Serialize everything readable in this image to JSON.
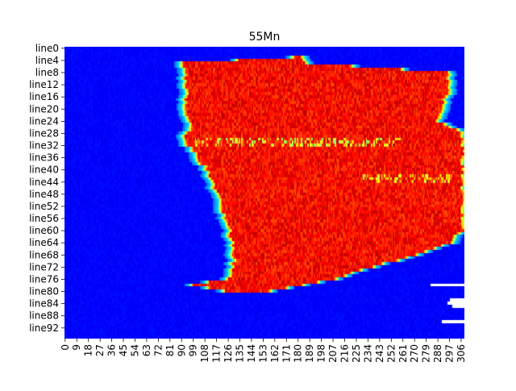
{
  "chart_data": {
    "type": "heatmap",
    "title": "55Mn",
    "xlabel": "",
    "ylabel": "",
    "n_rows": 96,
    "n_cols": 309,
    "y_tick_labels": [
      "line0",
      "line4",
      "line8",
      "line12",
      "line16",
      "line20",
      "line24",
      "line28",
      "line32",
      "line36",
      "line40",
      "line44",
      "line48",
      "line52",
      "line56",
      "line60",
      "line64",
      "line68",
      "line72",
      "line76",
      "line80",
      "line84",
      "line88",
      "line92"
    ],
    "y_tick_rows": [
      0,
      4,
      8,
      12,
      16,
      20,
      24,
      28,
      32,
      36,
      40,
      44,
      48,
      52,
      56,
      60,
      64,
      68,
      72,
      76,
      80,
      84,
      88,
      92
    ],
    "x_tick_labels": [
      "0",
      "9",
      "18",
      "27",
      "36",
      "45",
      "54",
      "63",
      "72",
      "81",
      "90",
      "99",
      "108",
      "117",
      "126",
      "135",
      "144",
      "153",
      "162",
      "171",
      "180",
      "189",
      "198",
      "207",
      "216",
      "225",
      "234",
      "243",
      "252",
      "261",
      "270",
      "279",
      "288",
      "297",
      "306"
    ],
    "x_tick_cols": [
      0,
      9,
      18,
      27,
      36,
      45,
      54,
      63,
      72,
      81,
      90,
      99,
      108,
      117,
      126,
      135,
      144,
      153,
      162,
      171,
      180,
      189,
      198,
      207,
      216,
      225,
      234,
      243,
      252,
      261,
      270,
      279,
      288,
      297,
      306
    ],
    "colormap": "jet",
    "value_range": [
      0,
      1
    ],
    "region_left_boundary_by_row": [
      [
        0,
        230
      ],
      [
        3,
        175
      ],
      [
        5,
        90
      ],
      [
        10,
        91
      ],
      [
        18,
        92
      ],
      [
        22,
        92
      ],
      [
        26,
        96
      ],
      [
        30,
        90
      ],
      [
        34,
        96
      ],
      [
        38,
        104
      ],
      [
        42,
        110
      ],
      [
        46,
        114
      ],
      [
        50,
        118
      ],
      [
        54,
        120
      ],
      [
        58,
        124
      ],
      [
        62,
        126
      ],
      [
        66,
        128
      ],
      [
        70,
        128
      ],
      [
        74,
        128
      ],
      [
        76,
        122
      ],
      [
        78,
        96
      ],
      [
        80,
        120
      ],
      [
        82,
        310
      ],
      [
        95,
        310
      ]
    ],
    "region_right_boundary_by_row": [
      [
        0,
        183
      ],
      [
        3,
        186
      ],
      [
        5,
        190
      ],
      [
        8,
        298
      ],
      [
        12,
        300
      ],
      [
        16,
        297
      ],
      [
        20,
        296
      ],
      [
        24,
        290
      ],
      [
        28,
        310
      ],
      [
        40,
        310
      ],
      [
        56,
        310
      ],
      [
        60,
        310
      ],
      [
        64,
        300
      ],
      [
        68,
        275
      ],
      [
        72,
        240
      ],
      [
        76,
        210
      ],
      [
        78,
        186
      ],
      [
        80,
        160
      ],
      [
        82,
        130
      ],
      [
        95,
        130
      ]
    ],
    "blank_cells": [
      {
        "row": 78,
        "col_start": 283,
        "col_end": 308
      },
      {
        "row": 83,
        "col_start": 298,
        "col_end": 308
      },
      {
        "row": 84,
        "col_start": 296,
        "col_end": 308
      },
      {
        "row": 85,
        "col_start": 300,
        "col_end": 308
      },
      {
        "row": 90,
        "col_start": 292,
        "col_end": 308
      }
    ],
    "colors": {
      "background_low": "#00008f",
      "cyan": "#00ffff",
      "yellow": "#ffff00",
      "orange": "#ff8000",
      "red": "#ff0000"
    }
  }
}
